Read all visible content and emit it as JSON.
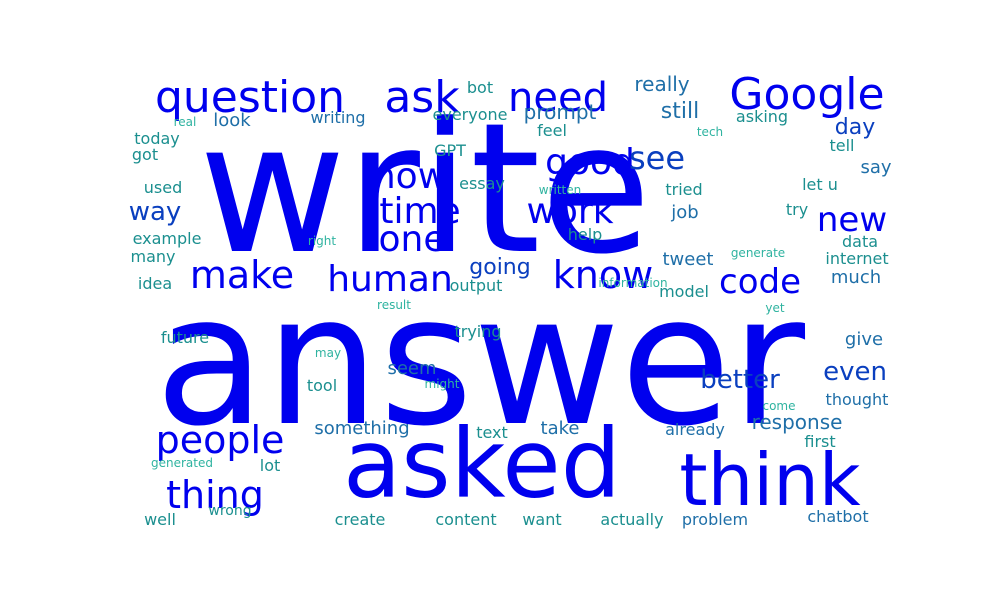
{
  "palette": {
    "blue": "#0000ee",
    "mid_blue": "#0a3fbf",
    "teal_blue": "#1f6fa8",
    "teal": "#1b8f8f",
    "light_teal": "#2fb3a0"
  },
  "words": [
    {
      "text": "write",
      "color": "#0000ee"
    },
    {
      "text": "answer",
      "color": "#0000ee"
    },
    {
      "text": "asked",
      "color": "#0000ee"
    },
    {
      "text": "think",
      "color": "#0000ee"
    },
    {
      "text": "Google",
      "color": "#0000ee"
    },
    {
      "text": "question",
      "color": "#0000ee"
    },
    {
      "text": "ask",
      "color": "#0000ee"
    },
    {
      "text": "need",
      "color": "#0000ee"
    },
    {
      "text": "know",
      "color": "#0000ee"
    },
    {
      "text": "people",
      "color": "#0000ee"
    },
    {
      "text": "thing",
      "color": "#0000ee"
    },
    {
      "text": "make",
      "color": "#0000ee"
    },
    {
      "text": "human",
      "color": "#0000ee"
    },
    {
      "text": "one",
      "color": "#0000ee"
    },
    {
      "text": "time",
      "color": "#0000ee"
    },
    {
      "text": "now",
      "color": "#0000ee"
    },
    {
      "text": "work",
      "color": "#0000ee"
    },
    {
      "text": "good",
      "color": "#0000ee"
    },
    {
      "text": "code",
      "color": "#0000ee"
    },
    {
      "text": "new",
      "color": "#0000ee"
    },
    {
      "text": "see",
      "color": "#0a3fbf"
    },
    {
      "text": "way",
      "color": "#0a3fbf"
    },
    {
      "text": "better",
      "color": "#0a3fbf"
    },
    {
      "text": "even",
      "color": "#0a3fbf"
    },
    {
      "text": "day",
      "color": "#0a3fbf"
    },
    {
      "text": "going",
      "color": "#0a3fbf"
    },
    {
      "text": "still",
      "color": "#1f6fa8"
    },
    {
      "text": "prompt",
      "color": "#1f6fa8"
    },
    {
      "text": "really",
      "color": "#1f6fa8"
    },
    {
      "text": "response",
      "color": "#1f6fa8"
    },
    {
      "text": "something",
      "color": "#1f6fa8"
    },
    {
      "text": "seem",
      "color": "#1f6fa8"
    },
    {
      "text": "take",
      "color": "#1f6fa8"
    },
    {
      "text": "give",
      "color": "#1f6fa8"
    },
    {
      "text": "say",
      "color": "#1f6fa8"
    },
    {
      "text": "job",
      "color": "#1f6fa8"
    },
    {
      "text": "tweet",
      "color": "#1f6fa8"
    },
    {
      "text": "much",
      "color": "#1f6fa8"
    },
    {
      "text": "look",
      "color": "#1f6fa8"
    },
    {
      "text": "writing",
      "color": "#1f6fa8"
    },
    {
      "text": "already",
      "color": "#1f6fa8"
    },
    {
      "text": "thought",
      "color": "#1f6fa8"
    },
    {
      "text": "problem",
      "color": "#1f6fa8"
    },
    {
      "text": "chatbot",
      "color": "#1f6fa8"
    },
    {
      "text": "actually",
      "color": "#1b8f8f"
    },
    {
      "text": "want",
      "color": "#1b8f8f"
    },
    {
      "text": "content",
      "color": "#1b8f8f"
    },
    {
      "text": "create",
      "color": "#1b8f8f"
    },
    {
      "text": "well",
      "color": "#1b8f8f"
    },
    {
      "text": "lot",
      "color": "#1b8f8f"
    },
    {
      "text": "text",
      "color": "#1b8f8f"
    },
    {
      "text": "tool",
      "color": "#1b8f8f"
    },
    {
      "text": "trying",
      "color": "#1b8f8f"
    },
    {
      "text": "future",
      "color": "#1b8f8f"
    },
    {
      "text": "idea",
      "color": "#1b8f8f"
    },
    {
      "text": "many",
      "color": "#1b8f8f"
    },
    {
      "text": "example",
      "color": "#1b8f8f"
    },
    {
      "text": "used",
      "color": "#1b8f8f"
    },
    {
      "text": "got",
      "color": "#1b8f8f"
    },
    {
      "text": "today",
      "color": "#1b8f8f"
    },
    {
      "text": "real",
      "color": "#2fb3a0"
    },
    {
      "text": "everyone",
      "color": "#1b8f8f"
    },
    {
      "text": "bot",
      "color": "#1b8f8f"
    },
    {
      "text": "GPT",
      "color": "#1b8f8f"
    },
    {
      "text": "feel",
      "color": "#1b8f8f"
    },
    {
      "text": "essay",
      "color": "#1b8f8f"
    },
    {
      "text": "written",
      "color": "#2fb3a0"
    },
    {
      "text": "tried",
      "color": "#1b8f8f"
    },
    {
      "text": "help",
      "color": "#1b8f8f"
    },
    {
      "text": "model",
      "color": "#1b8f8f"
    },
    {
      "text": "output",
      "color": "#1b8f8f"
    },
    {
      "text": "data",
      "color": "#1b8f8f"
    },
    {
      "text": "internet",
      "color": "#1b8f8f"
    },
    {
      "text": "generate",
      "color": "#2fb3a0"
    },
    {
      "text": "let u",
      "color": "#1b8f8f"
    },
    {
      "text": "try",
      "color": "#1b8f8f"
    },
    {
      "text": "tech",
      "color": "#2fb3a0"
    },
    {
      "text": "asking",
      "color": "#1b8f8f"
    },
    {
      "text": "tell",
      "color": "#1b8f8f"
    },
    {
      "text": "information",
      "color": "#2fb3a0"
    },
    {
      "text": "right",
      "color": "#2fb3a0"
    },
    {
      "text": "result",
      "color": "#2fb3a0"
    },
    {
      "text": "yet",
      "color": "#2fb3a0"
    },
    {
      "text": "may",
      "color": "#2fb3a0"
    },
    {
      "text": "might",
      "color": "#2fb3a0"
    },
    {
      "text": "come",
      "color": "#2fb3a0"
    },
    {
      "text": "first",
      "color": "#1b8f8f"
    },
    {
      "text": "generated",
      "color": "#2fb3a0"
    },
    {
      "text": "wrong",
      "color": "#1b8f8f"
    }
  ]
}
